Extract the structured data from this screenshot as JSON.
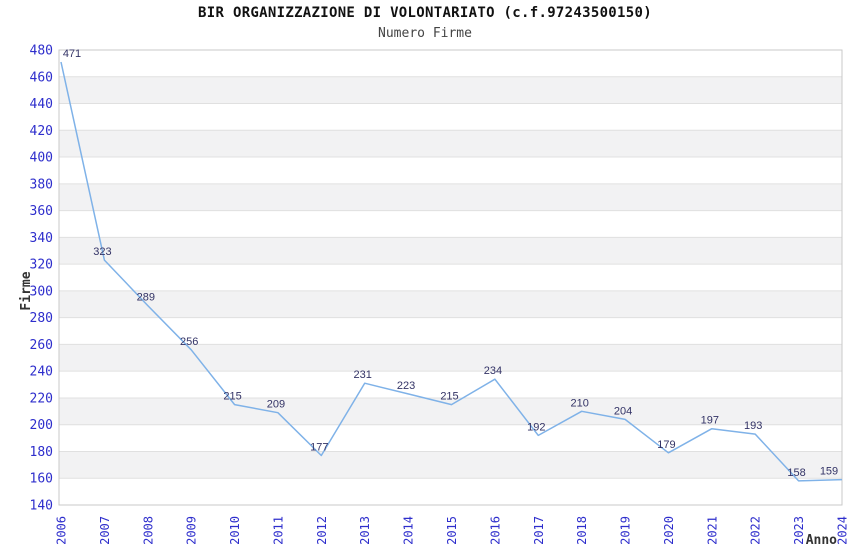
{
  "chart_data": {
    "type": "line",
    "title": "BIR ORGANIZZAZIONE DI VOLONTARIATO (c.f.97243500150)",
    "subtitle": "Numero Firme",
    "xlabel": "Anno",
    "ylabel": "Firme",
    "categories": [
      "2006",
      "2007",
      "2008",
      "2009",
      "2010",
      "2011",
      "2012",
      "2013",
      "2014",
      "2015",
      "2016",
      "2017",
      "2018",
      "2019",
      "2020",
      "2021",
      "2022",
      "2023",
      "2024"
    ],
    "values": [
      471,
      323,
      289,
      256,
      215,
      209,
      177,
      231,
      223,
      215,
      234,
      192,
      210,
      204,
      179,
      197,
      193,
      158,
      159
    ],
    "ylim": [
      140,
      480
    ],
    "ytick_step": 20,
    "yticks": [
      480,
      460,
      440,
      420,
      400,
      380,
      360,
      340,
      320,
      300,
      280,
      260,
      240,
      220,
      200,
      180,
      160,
      140
    ],
    "grid": true,
    "legend_position": "none",
    "band_colors": [
      "#FFFFFF",
      "#F2F2F3"
    ],
    "colors": {
      "line": "#7FB2E8",
      "tick_label": "#2E2ECC",
      "point_label": "#333366",
      "gridline": "#E0E0E0",
      "plot_border": "#C9C9C9",
      "title": "#111111",
      "subtitle": "#444444",
      "axis_label": "#333333",
      "background": "#FFFFFF"
    }
  }
}
